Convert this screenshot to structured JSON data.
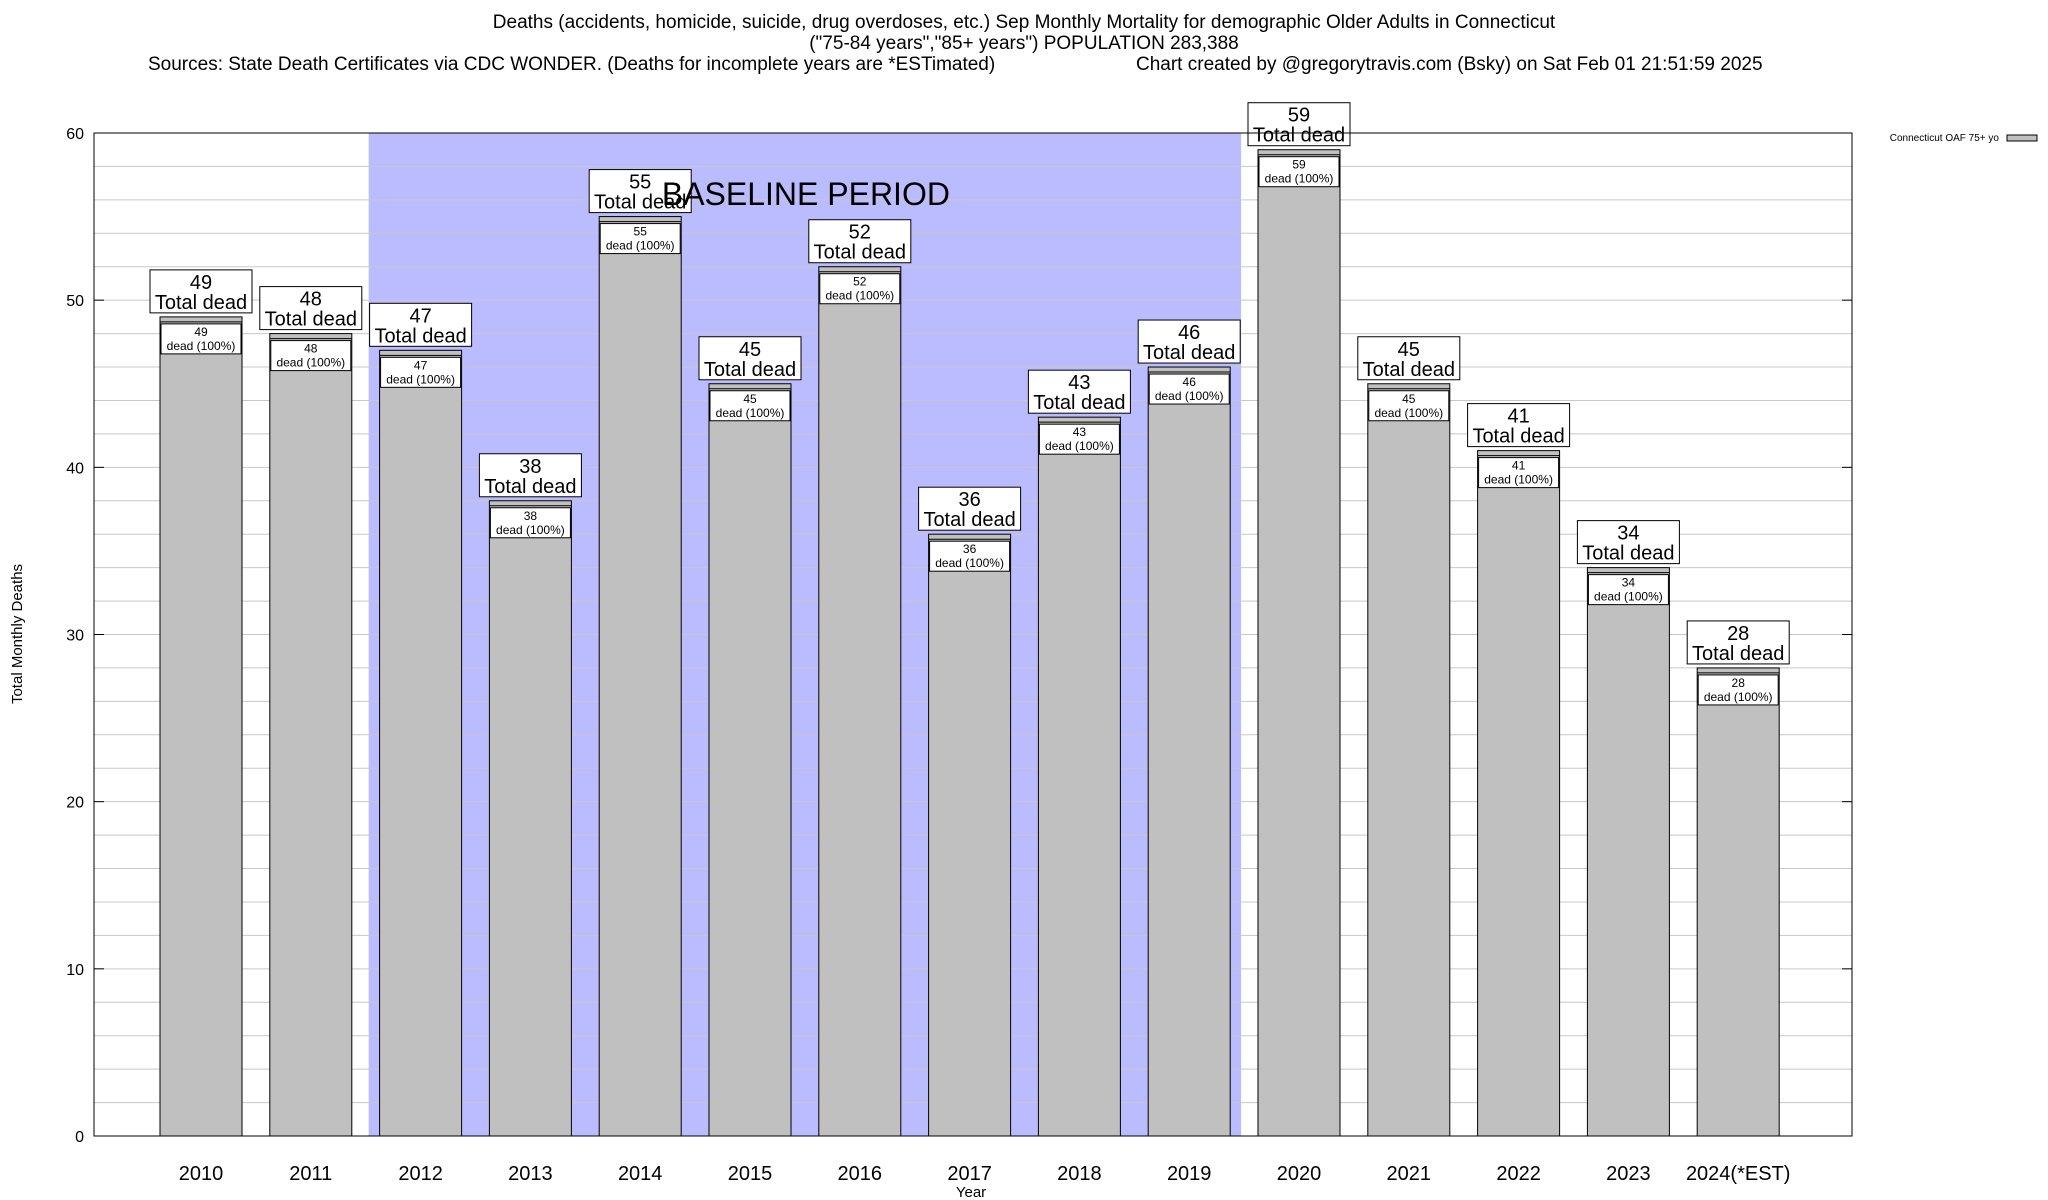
{
  "title_lines": [
    "Deaths (accidents, homicide, suicide, drug overdoses, etc.) Sep Monthly Mortality for demographic Older Adults in Connecticut",
    "(\"75-84 years\",\"85+ years\") POPULATION 283,388"
  ],
  "sources": "Sources: State Death Certificates via CDC WONDER. (Deaths for incomplete years are *ESTimated)",
  "credit": "Chart created by @gregorytravis.com (Bsky) on Sat Feb 01 21:51:59 2025",
  "colors": {
    "bar_fill": "#c0c0c0",
    "baseline_band": "#bbbbff",
    "grid": "#c8c8c8"
  },
  "chart_data": {
    "type": "bar",
    "categories": [
      "2010",
      "2011",
      "2012",
      "2013",
      "2014",
      "2015",
      "2016",
      "2017",
      "2018",
      "2019",
      "2020",
      "2021",
      "2022",
      "2023",
      "2024(*EST)"
    ],
    "series": [
      {
        "name": "Connecticut OAF 75+ yo",
        "values": [
          49,
          48,
          47,
          38,
          55,
          45,
          52,
          36,
          43,
          46,
          59,
          45,
          41,
          34,
          28
        ]
      }
    ],
    "total_label": "Total dead",
    "segment_label": "dead (100%)",
    "xlabel": "Year",
    "ylabel": "Total Monthly Deaths",
    "ylim": [
      0,
      60
    ],
    "yticks": [
      0,
      10,
      20,
      30,
      40,
      50,
      60
    ],
    "minor_grid_step": 2,
    "grid": true,
    "legend_position": "top-right",
    "baseline": {
      "label": "BASELINE PERIOD",
      "start_category": "2012",
      "end_category": "2019"
    }
  }
}
